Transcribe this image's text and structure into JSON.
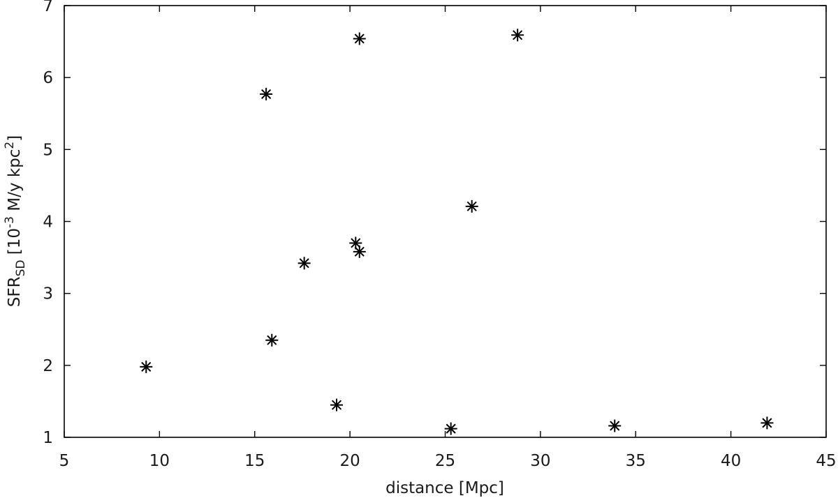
{
  "chart_data": {
    "type": "scatter",
    "xlabel": "distance [Mpc]",
    "ylabel": {
      "main": "SFR",
      "subscript": "SD",
      "bracket_open": " [10",
      "exponent": "-3",
      "unit_mid": " M/y kpc",
      "unit_exponent": "2",
      "bracket_close": "]"
    },
    "xlim": [
      5,
      45
    ],
    "ylim": [
      1,
      7
    ],
    "xticks": [
      5,
      10,
      15,
      20,
      25,
      30,
      35,
      40,
      45
    ],
    "yticks": [
      1,
      2,
      3,
      4,
      5,
      6,
      7
    ],
    "grid": false,
    "marker": "asterisk",
    "color": "#000000",
    "points": [
      {
        "x": 9.3,
        "y": 1.98
      },
      {
        "x": 15.6,
        "y": 5.77
      },
      {
        "x": 15.9,
        "y": 2.35
      },
      {
        "x": 17.6,
        "y": 3.42
      },
      {
        "x": 19.3,
        "y": 1.45
      },
      {
        "x": 20.3,
        "y": 3.7
      },
      {
        "x": 20.5,
        "y": 3.58
      },
      {
        "x": 20.5,
        "y": 6.54
      },
      {
        "x": 25.3,
        "y": 1.12
      },
      {
        "x": 26.4,
        "y": 4.21
      },
      {
        "x": 28.8,
        "y": 6.59
      },
      {
        "x": 33.9,
        "y": 1.16
      },
      {
        "x": 41.9,
        "y": 1.2
      }
    ]
  }
}
